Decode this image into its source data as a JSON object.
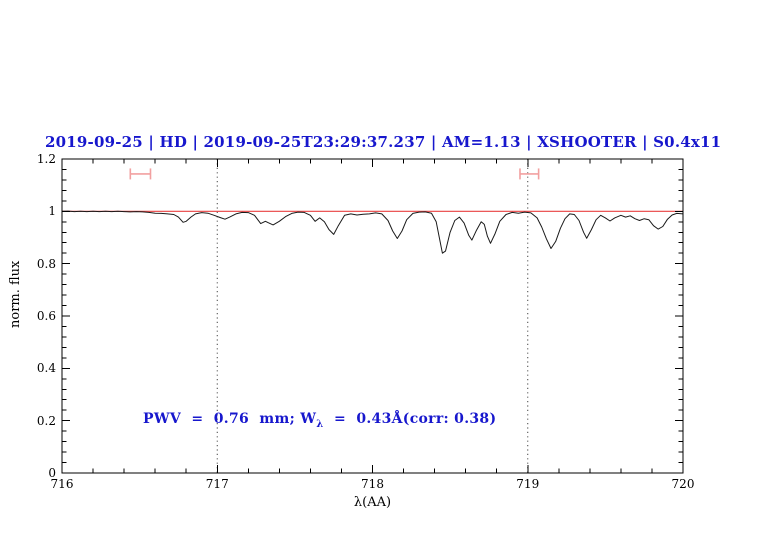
{
  "title": {
    "text": "2019-09-25 | HD | 2019-09-25T23:29:37.237 | AM=1.13 | XSHOOTER | S0.4x11"
  },
  "annotation": {
    "part1": "PWV  =  0.76  mm; W",
    "sub": "λ",
    "part2": "  =  0.43Å(corr: 0.38)"
  },
  "colors": {
    "title_blue": "#1717cd",
    "annotation_blue": "#1717cd",
    "continuum_red": "#e84040",
    "marker_pink": "#f2a0a0",
    "spectrum_black": "#1a1a1a",
    "frame_black": "#000000",
    "vline_gray": "#444444"
  },
  "chart_data": {
    "type": "line",
    "title": "2019-09-25 | HD | 2019-09-25T23:29:37.237 | AM=1.13 | XSHOOTER | S0.4x11",
    "xlabel": "λ(AA)",
    "ylabel": "norm. flux",
    "xlim": [
      716,
      720
    ],
    "ylim": [
      0,
      1.2
    ],
    "grid": false,
    "x_ticks": [
      {
        "v": 716,
        "label": "716"
      },
      {
        "v": 717,
        "label": "717"
      },
      {
        "v": 718,
        "label": "718"
      },
      {
        "v": 719,
        "label": "719"
      },
      {
        "v": 720,
        "label": "720"
      }
    ],
    "x_minor_step": 0.2,
    "y_ticks": [
      {
        "v": 0,
        "label": "0"
      },
      {
        "v": 0.2,
        "label": "0.2"
      },
      {
        "v": 0.4,
        "label": "0.4"
      },
      {
        "v": 0.6,
        "label": "0.6"
      },
      {
        "v": 0.8,
        "label": "0.8"
      },
      {
        "v": 1,
        "label": "1"
      },
      {
        "v": 1.2,
        "label": "1.2"
      }
    ],
    "y_minor_step": 0.04,
    "dotted_vlines": [
      717,
      719
    ],
    "continuum_level": 1.0,
    "range_markers": [
      {
        "x1": 716.44,
        "x2": 716.57,
        "y": 1.143
      },
      {
        "x1": 718.95,
        "x2": 719.07,
        "y": 1.143
      }
    ],
    "annotation_text": "PWV = 0.76 mm; Wλ = 0.43Å(corr: 0.38)",
    "series": [
      {
        "name": "normalized spectrum",
        "points": [
          [
            716.0,
            1.0
          ],
          [
            716.04,
            1.001
          ],
          [
            716.08,
            0.999
          ],
          [
            716.12,
            1.0
          ],
          [
            716.16,
            0.999
          ],
          [
            716.2,
            1.0
          ],
          [
            716.24,
            0.999
          ],
          [
            716.28,
            1.0
          ],
          [
            716.32,
            0.999
          ],
          [
            716.36,
            1.0
          ],
          [
            716.4,
            0.999
          ],
          [
            716.44,
            0.998
          ],
          [
            716.48,
            0.999
          ],
          [
            716.52,
            0.998
          ],
          [
            716.56,
            0.996
          ],
          [
            716.6,
            0.993
          ],
          [
            716.64,
            0.992
          ],
          [
            716.68,
            0.99
          ],
          [
            716.72,
            0.988
          ],
          [
            716.75,
            0.978
          ],
          [
            716.78,
            0.958
          ],
          [
            716.8,
            0.962
          ],
          [
            716.83,
            0.978
          ],
          [
            716.86,
            0.99
          ],
          [
            716.9,
            0.995
          ],
          [
            716.94,
            0.993
          ],
          [
            716.98,
            0.985
          ],
          [
            717.02,
            0.976
          ],
          [
            717.05,
            0.97
          ],
          [
            717.08,
            0.978
          ],
          [
            717.12,
            0.99
          ],
          [
            717.16,
            0.996
          ],
          [
            717.2,
            0.995
          ],
          [
            717.24,
            0.985
          ],
          [
            717.28,
            0.953
          ],
          [
            717.31,
            0.962
          ],
          [
            717.33,
            0.956
          ],
          [
            717.36,
            0.948
          ],
          [
            717.4,
            0.962
          ],
          [
            717.44,
            0.98
          ],
          [
            717.48,
            0.992
          ],
          [
            717.52,
            0.997
          ],
          [
            717.56,
            0.996
          ],
          [
            717.6,
            0.985
          ],
          [
            717.63,
            0.962
          ],
          [
            717.66,
            0.975
          ],
          [
            717.69,
            0.96
          ],
          [
            717.72,
            0.93
          ],
          [
            717.75,
            0.912
          ],
          [
            717.78,
            0.945
          ],
          [
            717.82,
            0.985
          ],
          [
            717.86,
            0.99
          ],
          [
            717.9,
            0.986
          ],
          [
            717.94,
            0.989
          ],
          [
            717.98,
            0.99
          ],
          [
            718.02,
            0.994
          ],
          [
            718.06,
            0.99
          ],
          [
            718.1,
            0.965
          ],
          [
            718.13,
            0.925
          ],
          [
            718.16,
            0.896
          ],
          [
            718.19,
            0.925
          ],
          [
            718.22,
            0.968
          ],
          [
            718.26,
            0.992
          ],
          [
            718.3,
            0.997
          ],
          [
            718.34,
            0.998
          ],
          [
            718.38,
            0.993
          ],
          [
            718.41,
            0.96
          ],
          [
            718.43,
            0.9
          ],
          [
            718.45,
            0.84
          ],
          [
            718.47,
            0.848
          ],
          [
            718.5,
            0.92
          ],
          [
            718.53,
            0.965
          ],
          [
            718.56,
            0.978
          ],
          [
            718.59,
            0.955
          ],
          [
            718.62,
            0.908
          ],
          [
            718.64,
            0.89
          ],
          [
            718.67,
            0.928
          ],
          [
            718.7,
            0.96
          ],
          [
            718.72,
            0.95
          ],
          [
            718.74,
            0.905
          ],
          [
            718.76,
            0.878
          ],
          [
            718.79,
            0.915
          ],
          [
            718.82,
            0.962
          ],
          [
            718.86,
            0.988
          ],
          [
            718.9,
            0.996
          ],
          [
            718.94,
            0.993
          ],
          [
            718.98,
            0.997
          ],
          [
            719.02,
            0.994
          ],
          [
            719.06,
            0.975
          ],
          [
            719.09,
            0.94
          ],
          [
            719.12,
            0.895
          ],
          [
            719.15,
            0.858
          ],
          [
            719.18,
            0.885
          ],
          [
            719.21,
            0.935
          ],
          [
            719.24,
            0.972
          ],
          [
            719.27,
            0.99
          ],
          [
            719.3,
            0.988
          ],
          [
            719.33,
            0.965
          ],
          [
            719.36,
            0.92
          ],
          [
            719.38,
            0.897
          ],
          [
            719.41,
            0.93
          ],
          [
            719.44,
            0.968
          ],
          [
            719.47,
            0.985
          ],
          [
            719.5,
            0.975
          ],
          [
            719.53,
            0.963
          ],
          [
            719.56,
            0.975
          ],
          [
            719.6,
            0.985
          ],
          [
            719.63,
            0.978
          ],
          [
            719.66,
            0.983
          ],
          [
            719.69,
            0.972
          ],
          [
            719.72,
            0.965
          ],
          [
            719.75,
            0.972
          ],
          [
            719.78,
            0.968
          ],
          [
            719.81,
            0.945
          ],
          [
            719.84,
            0.932
          ],
          [
            719.87,
            0.942
          ],
          [
            719.9,
            0.97
          ],
          [
            719.93,
            0.986
          ],
          [
            719.96,
            0.992
          ],
          [
            720.0,
            0.99
          ]
        ]
      }
    ]
  }
}
